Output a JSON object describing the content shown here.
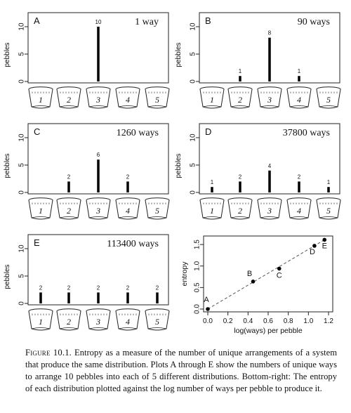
{
  "chart_data": [
    {
      "type": "bar",
      "panel": "A",
      "ways": "1 way",
      "ylabel": "pebbles",
      "categories": [
        "1",
        "2",
        "3",
        "4",
        "5"
      ],
      "values": [
        0,
        0,
        10,
        0,
        0
      ],
      "ylim": [
        0,
        10
      ],
      "yticks": [
        0,
        5,
        10
      ]
    },
    {
      "type": "bar",
      "panel": "B",
      "ways": "90 ways",
      "ylabel": "pebbles",
      "categories": [
        "1",
        "2",
        "3",
        "4",
        "5"
      ],
      "values": [
        0,
        1,
        8,
        1,
        0
      ],
      "ylim": [
        0,
        10
      ],
      "yticks": [
        0,
        5,
        10
      ]
    },
    {
      "type": "bar",
      "panel": "C",
      "ways": "1260 ways",
      "ylabel": "pebbles",
      "categories": [
        "1",
        "2",
        "3",
        "4",
        "5"
      ],
      "values": [
        0,
        2,
        6,
        2,
        0
      ],
      "ylim": [
        0,
        10
      ],
      "yticks": [
        0,
        5,
        10
      ]
    },
    {
      "type": "bar",
      "panel": "D",
      "ways": "37800 ways",
      "ylabel": "pebbles",
      "categories": [
        "1",
        "2",
        "3",
        "4",
        "5"
      ],
      "values": [
        1,
        2,
        4,
        2,
        1
      ],
      "ylim": [
        0,
        10
      ],
      "yticks": [
        0,
        5,
        10
      ]
    },
    {
      "type": "bar",
      "panel": "E",
      "ways": "113400 ways",
      "ylabel": "pebbles",
      "categories": [
        "1",
        "2",
        "3",
        "4",
        "5"
      ],
      "values": [
        2,
        2,
        2,
        2,
        2
      ],
      "ylim": [
        0,
        10
      ],
      "yticks": [
        0,
        5,
        10
      ]
    },
    {
      "type": "scatter",
      "panel": "entropy",
      "xlabel": "log(ways) per pebble",
      "ylabel": "entropy",
      "xlim": [
        0,
        1.2
      ],
      "ylim": [
        0,
        1.6
      ],
      "xticks": [
        0.0,
        0.2,
        0.4,
        0.6,
        0.8,
        1.0,
        1.2
      ],
      "yticks": [
        0.0,
        0.5,
        1.0,
        1.5
      ],
      "points": [
        {
          "label": "A",
          "x": 0.0,
          "y": 0.0
        },
        {
          "label": "B",
          "x": 0.45,
          "y": 0.64
        },
        {
          "label": "C",
          "x": 0.71,
          "y": 0.94
        },
        {
          "label": "D",
          "x": 1.06,
          "y": 1.47
        },
        {
          "label": "E",
          "x": 1.16,
          "y": 1.61
        }
      ],
      "fit_line": "dashed"
    }
  ],
  "caption": {
    "label": "Figure 10.1.",
    "text": "Entropy as a measure of the number of unique arrangements of a system that produce the same distribution. Plots A through E show the numbers of unique ways to arrange 10 pebbles into each of 5 different distributions. Bottom-right: The entropy of each distribution plotted against the log number of ways per pebble to produce it."
  }
}
